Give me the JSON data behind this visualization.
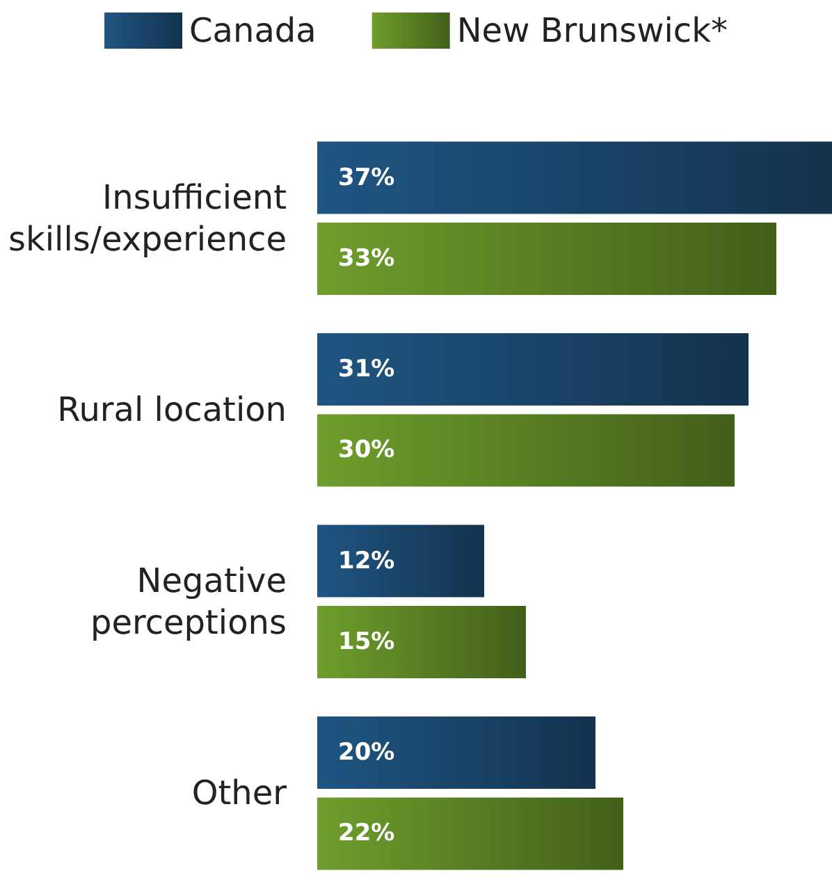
{
  "chart_data": {
    "type": "bar",
    "orientation": "horizontal",
    "categories": [
      "Insufficient\nskills/experience",
      "Rural location",
      "Negative\nperceptions",
      "Other"
    ],
    "series": [
      {
        "name": "Canada",
        "color": "#1f5582",
        "values": [
          37,
          31,
          12,
          20
        ],
        "value_labels": [
          "37%",
          "31%",
          "12%",
          "20%"
        ]
      },
      {
        "name": "New Brunswick*",
        "color": "#6e9e2c",
        "values": [
          33,
          30,
          15,
          22
        ],
        "value_labels": [
          "33%",
          "30%",
          "15%",
          "22%"
        ]
      }
    ],
    "legend": "top"
  }
}
